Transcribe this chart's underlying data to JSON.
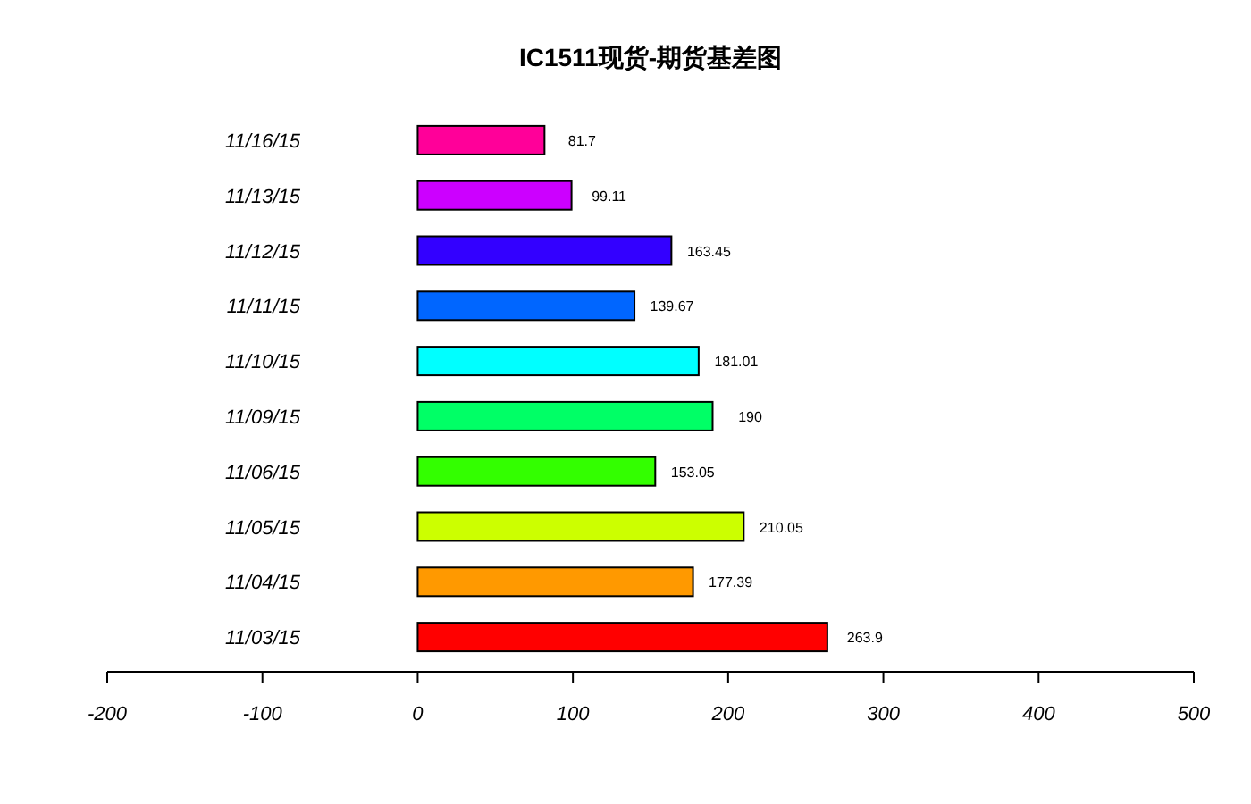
{
  "chart_data": {
    "type": "bar",
    "orientation": "horizontal",
    "title": "IC1511现货-期货基差图",
    "categories": [
      "11/16/15",
      "11/13/15",
      "11/12/15",
      "11/11/15",
      "11/10/15",
      "11/09/15",
      "11/06/15",
      "11/05/15",
      "11/04/15",
      "11/03/15"
    ],
    "values": [
      81.7,
      99.11,
      163.45,
      139.67,
      181.01,
      190,
      153.05,
      210.05,
      177.39,
      263.9
    ],
    "colors": [
      "#ff0099",
      "#cc00ff",
      "#3300ff",
      "#0066ff",
      "#00ffff",
      "#00ff66",
      "#33ff00",
      "#ccff00",
      "#ff9900",
      "#ff0000"
    ],
    "xlim": [
      -200,
      500
    ],
    "xticks": [
      -200,
      -100,
      0,
      100,
      200,
      300,
      400,
      500
    ],
    "data_labels": true,
    "grid": false
  }
}
